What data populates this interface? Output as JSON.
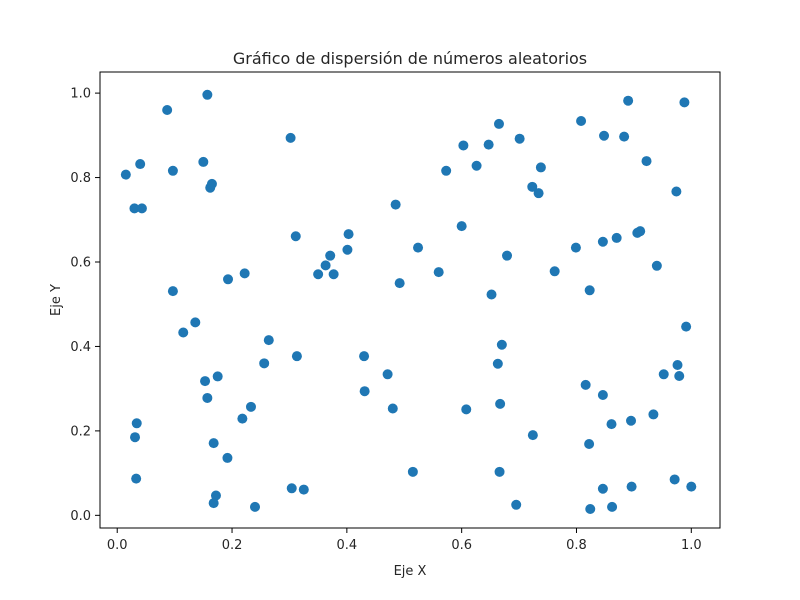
{
  "chart_data": {
    "type": "scatter",
    "title": "Gráfico de dispersión de números aleatorios",
    "xlabel": "Eje X",
    "ylabel": "Eje Y",
    "xlim": [
      -0.03,
      1.05
    ],
    "ylim": [
      -0.03,
      1.05
    ],
    "xticks": [
      0.0,
      0.2,
      0.4,
      0.6,
      0.8,
      1.0
    ],
    "yticks": [
      0.0,
      0.2,
      0.4,
      0.6,
      0.8,
      1.0
    ],
    "xtick_labels": [
      "0.0",
      "0.2",
      "0.4",
      "0.6",
      "0.8",
      "1.0"
    ],
    "ytick_labels": [
      "0.0",
      "0.2",
      "0.4",
      "0.6",
      "0.8",
      "1.0"
    ],
    "grid": false,
    "marker_color": "#1f77b4",
    "points": [
      {
        "x": 0.015,
        "y": 0.807
      },
      {
        "x": 0.03,
        "y": 0.727
      },
      {
        "x": 0.043,
        "y": 0.727
      },
      {
        "x": 0.04,
        "y": 0.832
      },
      {
        "x": 0.087,
        "y": 0.96
      },
      {
        "x": 0.097,
        "y": 0.816
      },
      {
        "x": 0.097,
        "y": 0.531
      },
      {
        "x": 0.115,
        "y": 0.433
      },
      {
        "x": 0.136,
        "y": 0.457
      },
      {
        "x": 0.15,
        "y": 0.837
      },
      {
        "x": 0.157,
        "y": 0.996
      },
      {
        "x": 0.162,
        "y": 0.776
      },
      {
        "x": 0.165,
        "y": 0.785
      },
      {
        "x": 0.193,
        "y": 0.559
      },
      {
        "x": 0.222,
        "y": 0.573
      },
      {
        "x": 0.031,
        "y": 0.185
      },
      {
        "x": 0.034,
        "y": 0.218
      },
      {
        "x": 0.033,
        "y": 0.087
      },
      {
        "x": 0.153,
        "y": 0.318
      },
      {
        "x": 0.157,
        "y": 0.278
      },
      {
        "x": 0.175,
        "y": 0.329
      },
      {
        "x": 0.168,
        "y": 0.171
      },
      {
        "x": 0.192,
        "y": 0.136
      },
      {
        "x": 0.172,
        "y": 0.047
      },
      {
        "x": 0.168,
        "y": 0.029
      },
      {
        "x": 0.218,
        "y": 0.229
      },
      {
        "x": 0.233,
        "y": 0.257
      },
      {
        "x": 0.256,
        "y": 0.36
      },
      {
        "x": 0.264,
        "y": 0.415
      },
      {
        "x": 0.24,
        "y": 0.02
      },
      {
        "x": 0.302,
        "y": 0.894
      },
      {
        "x": 0.311,
        "y": 0.661
      },
      {
        "x": 0.313,
        "y": 0.377
      },
      {
        "x": 0.304,
        "y": 0.064
      },
      {
        "x": 0.325,
        "y": 0.061
      },
      {
        "x": 0.35,
        "y": 0.571
      },
      {
        "x": 0.363,
        "y": 0.592
      },
      {
        "x": 0.371,
        "y": 0.615
      },
      {
        "x": 0.377,
        "y": 0.571
      },
      {
        "x": 0.401,
        "y": 0.629
      },
      {
        "x": 0.403,
        "y": 0.666
      },
      {
        "x": 0.43,
        "y": 0.377
      },
      {
        "x": 0.431,
        "y": 0.294
      },
      {
        "x": 0.471,
        "y": 0.334
      },
      {
        "x": 0.48,
        "y": 0.253
      },
      {
        "x": 0.485,
        "y": 0.736
      },
      {
        "x": 0.492,
        "y": 0.55
      },
      {
        "x": 0.515,
        "y": 0.103
      },
      {
        "x": 0.524,
        "y": 0.634
      },
      {
        "x": 0.56,
        "y": 0.576
      },
      {
        "x": 0.573,
        "y": 0.816
      },
      {
        "x": 0.6,
        "y": 0.685
      },
      {
        "x": 0.603,
        "y": 0.876
      },
      {
        "x": 0.608,
        "y": 0.251
      },
      {
        "x": 0.626,
        "y": 0.828
      },
      {
        "x": 0.647,
        "y": 0.878
      },
      {
        "x": 0.652,
        "y": 0.523
      },
      {
        "x": 0.665,
        "y": 0.927
      },
      {
        "x": 0.663,
        "y": 0.359
      },
      {
        "x": 0.67,
        "y": 0.404
      },
      {
        "x": 0.667,
        "y": 0.264
      },
      {
        "x": 0.666,
        "y": 0.103
      },
      {
        "x": 0.679,
        "y": 0.615
      },
      {
        "x": 0.701,
        "y": 0.892
      },
      {
        "x": 0.695,
        "y": 0.025
      },
      {
        "x": 0.723,
        "y": 0.778
      },
      {
        "x": 0.734,
        "y": 0.763
      },
      {
        "x": 0.738,
        "y": 0.824
      },
      {
        "x": 0.724,
        "y": 0.19
      },
      {
        "x": 0.762,
        "y": 0.578
      },
      {
        "x": 0.799,
        "y": 0.634
      },
      {
        "x": 0.808,
        "y": 0.934
      },
      {
        "x": 0.816,
        "y": 0.309
      },
      {
        "x": 0.823,
        "y": 0.533
      },
      {
        "x": 0.822,
        "y": 0.169
      },
      {
        "x": 0.824,
        "y": 0.015
      },
      {
        "x": 0.846,
        "y": 0.648
      },
      {
        "x": 0.848,
        "y": 0.899
      },
      {
        "x": 0.846,
        "y": 0.285
      },
      {
        "x": 0.846,
        "y": 0.063
      },
      {
        "x": 0.861,
        "y": 0.216
      },
      {
        "x": 0.862,
        "y": 0.02
      },
      {
        "x": 0.87,
        "y": 0.657
      },
      {
        "x": 0.883,
        "y": 0.897
      },
      {
        "x": 0.89,
        "y": 0.982
      },
      {
        "x": 0.895,
        "y": 0.224
      },
      {
        "x": 0.896,
        "y": 0.068
      },
      {
        "x": 0.906,
        "y": 0.669
      },
      {
        "x": 0.911,
        "y": 0.673
      },
      {
        "x": 0.922,
        "y": 0.839
      },
      {
        "x": 0.934,
        "y": 0.239
      },
      {
        "x": 0.94,
        "y": 0.591
      },
      {
        "x": 0.952,
        "y": 0.334
      },
      {
        "x": 0.971,
        "y": 0.085
      },
      {
        "x": 0.974,
        "y": 0.767
      },
      {
        "x": 0.976,
        "y": 0.356
      },
      {
        "x": 0.979,
        "y": 0.33
      },
      {
        "x": 0.988,
        "y": 0.978
      },
      {
        "x": 0.991,
        "y": 0.447
      },
      {
        "x": 1.0,
        "y": 0.068
      }
    ]
  }
}
